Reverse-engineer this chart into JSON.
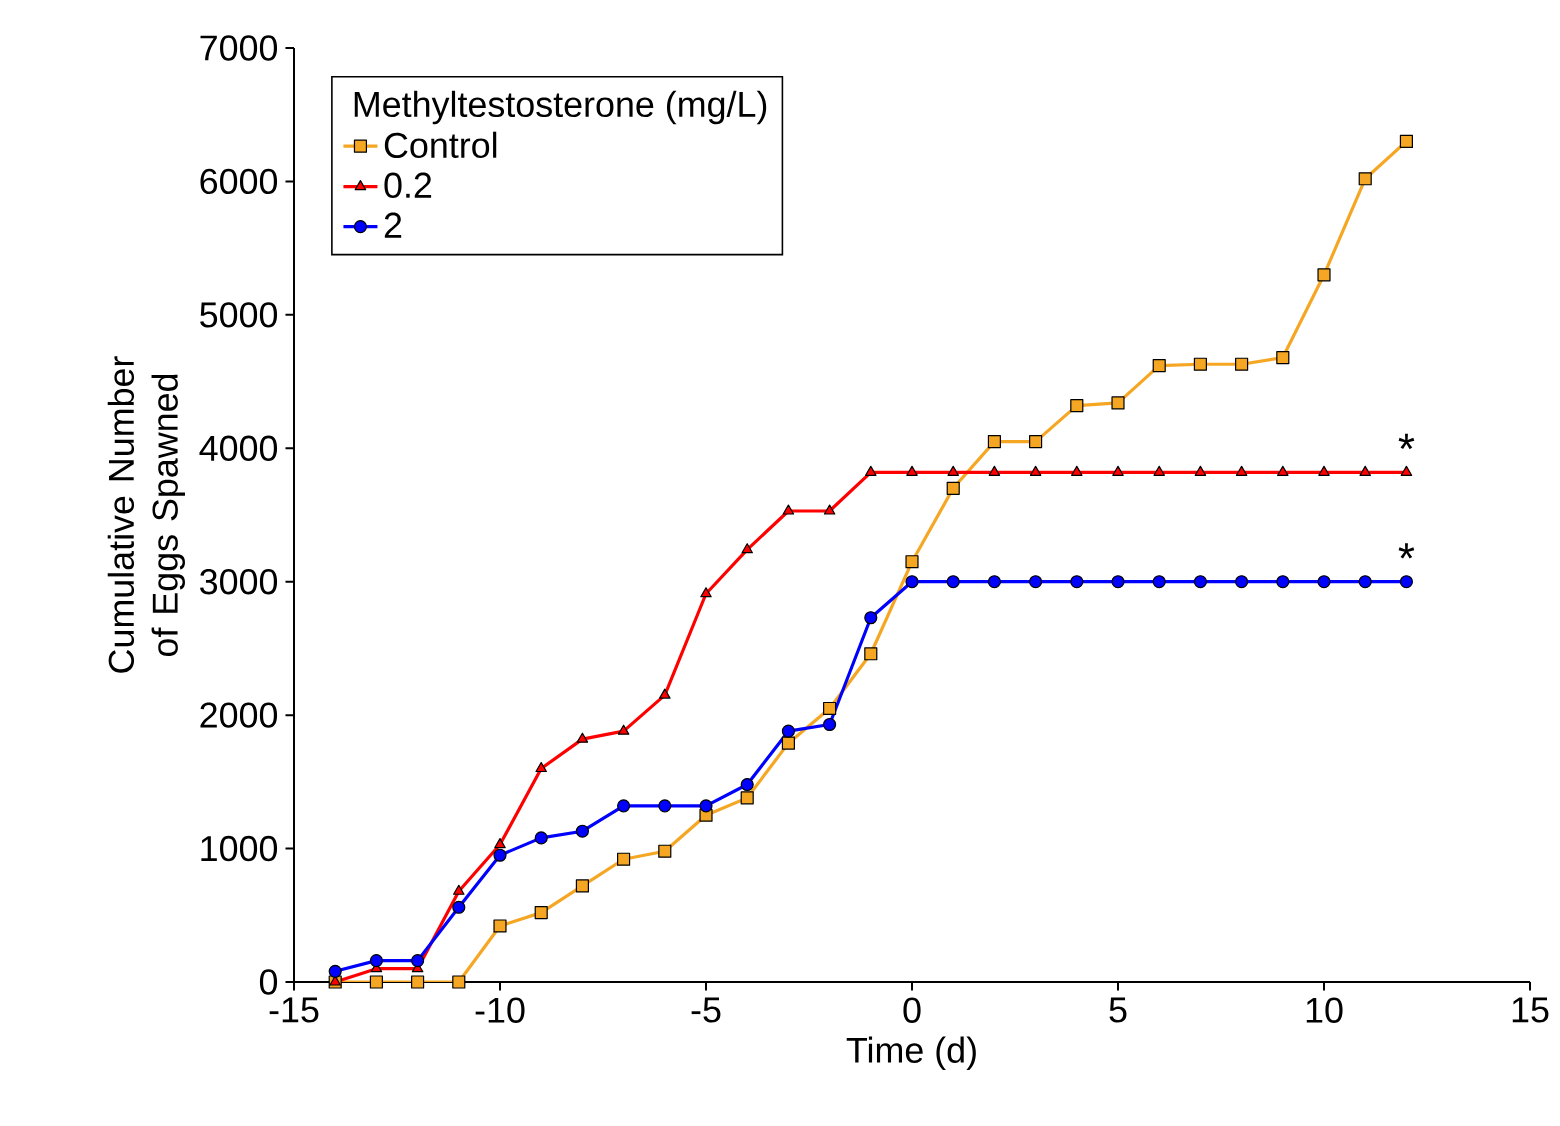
{
  "chart_data": {
    "type": "line",
    "xlabel": "Time (d)",
    "ylabel": "Cumulative Number of Eggs Spawned",
    "legend_title": "Methyltestosterone (mg/L)",
    "legend": "top left",
    "x": [
      -14,
      -13,
      -12,
      -11,
      -10,
      -9,
      -8,
      -7,
      -6,
      -5,
      -4,
      -3,
      -2,
      -1,
      0,
      1,
      2,
      3,
      4,
      5,
      6,
      7,
      8,
      9,
      10,
      11,
      12
    ],
    "series": [
      {
        "name": "Control",
        "color": "#f5a623",
        "marker": "square",
        "values": [
          0,
          0,
          0,
          0,
          420,
          520,
          720,
          920,
          980,
          1250,
          1380,
          1790,
          2050,
          2460,
          3150,
          3700,
          4050,
          4050,
          4320,
          4340,
          4620,
          4630,
          4630,
          4680,
          5300,
          6020,
          6300
        ]
      },
      {
        "name": "0.2",
        "color": "#ff0000",
        "marker": "triangle",
        "values": [
          0,
          100,
          100,
          680,
          1030,
          1600,
          1820,
          1880,
          2150,
          2910,
          3240,
          3530,
          3530,
          3820,
          3820,
          3820,
          3820,
          3820,
          3820,
          3820,
          3820,
          3820,
          3820,
          3820,
          3820,
          3820,
          3820
        ]
      },
      {
        "name": "2",
        "color": "#0000ff",
        "marker": "circle",
        "values": [
          80,
          160,
          160,
          560,
          950,
          1080,
          1130,
          1320,
          1320,
          1320,
          1480,
          1880,
          1930,
          2730,
          3000,
          3000,
          3000,
          3000,
          3000,
          3000,
          3000,
          3000,
          3000,
          3000,
          3000,
          3000,
          3000
        ]
      }
    ],
    "annotations": [
      {
        "text": "*",
        "x": 12,
        "y": 3820
      },
      {
        "text": "*",
        "x": 12,
        "y": 3000
      }
    ],
    "xlim": [
      -15,
      15
    ],
    "xticks": [
      -15,
      -10,
      -5,
      0,
      5,
      10,
      15
    ],
    "ylim": [
      0,
      7000
    ],
    "yticks": [
      0,
      1000,
      2000,
      3000,
      4000,
      5000,
      6000,
      7000
    ]
  }
}
